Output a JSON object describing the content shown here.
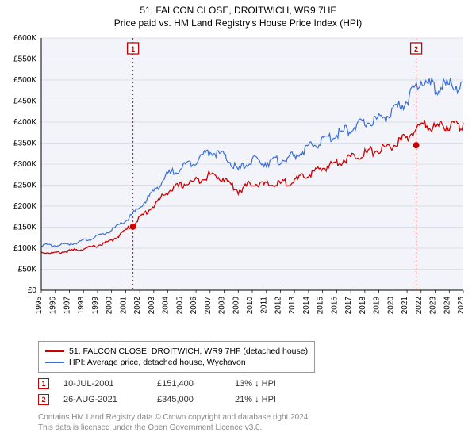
{
  "title_line1": "51, FALCON CLOSE, DROITWICH, WR9 7HF",
  "title_line2": "Price paid vs. HM Land Registry's House Price Index (HPI)",
  "chart": {
    "type": "line",
    "background_color": "#ffffff",
    "plot_background_color": "#f2f4fa",
    "axis_color": "#000000",
    "grid_color": "#bfc7d6",
    "font_size_labels": 10,
    "x_years": [
      1995,
      1996,
      1997,
      1998,
      1999,
      2000,
      2001,
      2002,
      2003,
      2004,
      2005,
      2006,
      2007,
      2008,
      2009,
      2010,
      2011,
      2012,
      2013,
      2014,
      2015,
      2016,
      2017,
      2018,
      2019,
      2020,
      2021,
      2022,
      2023,
      2024,
      2025
    ],
    "x_range": [
      1995,
      2025
    ],
    "ylim": [
      0,
      600000
    ],
    "ytick_step": 50000,
    "ytick_labels": [
      "£0",
      "£50K",
      "£100K",
      "£150K",
      "£200K",
      "£250K",
      "£300K",
      "£350K",
      "£400K",
      "£450K",
      "£500K",
      "£550K",
      "£600K"
    ],
    "series": [
      {
        "name": "property",
        "label": "51, FALCON CLOSE, DROITWICH, WR9 7HF (detached house)",
        "color": "#cc0000",
        "line_width": 1.3,
        "data_yearly": [
          92000,
          90000,
          95000,
          100000,
          108000,
          120000,
          145000,
          175000,
          205000,
          240000,
          255000,
          265000,
          280000,
          270000,
          240000,
          260000,
          255000,
          258000,
          265000,
          280000,
          295000,
          310000,
          322000,
          332000,
          340000,
          350000,
          370000,
          400000,
          395000,
          400000,
          398000
        ]
      },
      {
        "name": "hpi",
        "label": "HPI: Average price, detached house, Wychavon",
        "color": "#3b6fd6",
        "line_width": 1.2,
        "data_yearly": [
          110000,
          108000,
          112000,
          120000,
          130000,
          145000,
          168000,
          200000,
          240000,
          280000,
          298000,
          315000,
          338000,
          325000,
          290000,
          315000,
          310000,
          315000,
          325000,
          345000,
          362000,
          378000,
          392000,
          405000,
          415000,
          430000,
          460000,
          510000,
          490000,
          498000,
          495000
        ]
      }
    ],
    "transactions": [
      {
        "n": 1,
        "year": 2001.52,
        "price": 151400,
        "color": "#cc0000"
      },
      {
        "n": 2,
        "year": 2021.65,
        "price": 345000,
        "color": "#cc0000"
      }
    ]
  },
  "legend": {
    "items": [
      {
        "color": "#cc0000",
        "label": "51, FALCON CLOSE, DROITWICH, WR9 7HF (detached house)"
      },
      {
        "color": "#3b6fd6",
        "label": "HPI: Average price, detached house, Wychavon"
      }
    ]
  },
  "tx_table": [
    {
      "marker_color": "#cc0000",
      "n": "1",
      "date": "10-JUL-2001",
      "price": "£151,400",
      "pct": "13% ↓ HPI"
    },
    {
      "marker_color": "#cc0000",
      "n": "2",
      "date": "26-AUG-2021",
      "price": "£345,000",
      "pct": "21% ↓ HPI"
    }
  ],
  "footer_line1": "Contains HM Land Registry data © Crown copyright and database right 2024.",
  "footer_line2": "This data is licensed under the Open Government Licence v3.0."
}
